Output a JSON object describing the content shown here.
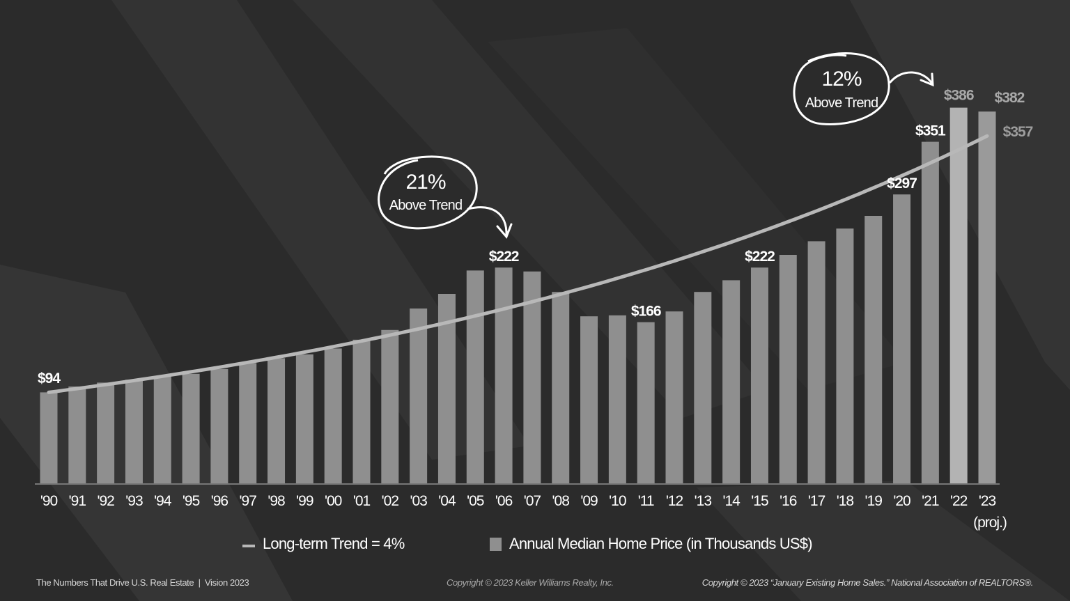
{
  "chart_data": {
    "type": "bar",
    "categories": [
      "'90",
      "'91",
      "'92",
      "'93",
      "'94",
      "'95",
      "'96",
      "'97",
      "'98",
      "'99",
      "'00",
      "'01",
      "'02",
      "'03",
      "'04",
      "'05",
      "'06",
      "'07",
      "'08",
      "'09",
      "'10",
      "'11",
      "'12",
      "'13",
      "'14",
      "'15",
      "'16",
      "'17",
      "'18",
      "'19",
      "'20",
      "'21",
      "'22",
      "'23"
    ],
    "category_sublabel": {
      "'23": "(proj.)"
    },
    "series": [
      {
        "name": "Annual Median Home Price (in Thousands US$)",
        "type": "bar",
        "values": [
          94,
          100,
          104,
          107,
          110,
          113,
          118,
          124,
          129,
          133,
          139,
          148,
          158,
          180,
          195,
          219,
          222,
          218,
          197,
          172,
          173,
          166,
          177,
          197,
          209,
          222,
          235,
          249,
          262,
          275,
          297,
          351,
          386,
          382
        ]
      },
      {
        "name": "Long-term Trend = 4%",
        "type": "line",
        "start": 94,
        "end": 357
      }
    ],
    "data_labels": [
      {
        "category": "'90",
        "text": "$94"
      },
      {
        "category": "'06",
        "text": "$222"
      },
      {
        "category": "'11",
        "text": "$166"
      },
      {
        "category": "'15",
        "text": "$222"
      },
      {
        "category": "'20",
        "text": "$297"
      },
      {
        "category": "'21",
        "text": "$351"
      },
      {
        "category": "'22",
        "text": "$386"
      },
      {
        "category": "'23",
        "text": "$382"
      },
      {
        "category": "'23",
        "text": "$357",
        "series": "trend"
      }
    ],
    "annotations": [
      {
        "big": "21%",
        "small": "Above Trend",
        "points_to": "'06"
      },
      {
        "big": "12%",
        "small": "Above Trend",
        "points_to": "'22"
      }
    ],
    "legend": {
      "placement": "bottom",
      "trend": "Long-term Trend = 4%",
      "bars": "Annual Median Home Price (in Thousands US$)"
    },
    "colors": {
      "bar": "#8f8f8f",
      "bar_highlight": "#b3b3b3",
      "bar_projected": "#9a9a9a",
      "trend": "#b8b8b8",
      "background": "#2b2b2b"
    },
    "ylim": [
      0,
      400
    ],
    "grid": false
  },
  "footer": {
    "left": "The Numbers That Drive U.S. Real Estate  |  Vision 2023",
    "center": "Copyright © 2023 Keller Williams Realty, Inc.",
    "right": "Copyright © 2023 “January Existing Home Sales.” National Association of REALTORS®."
  }
}
